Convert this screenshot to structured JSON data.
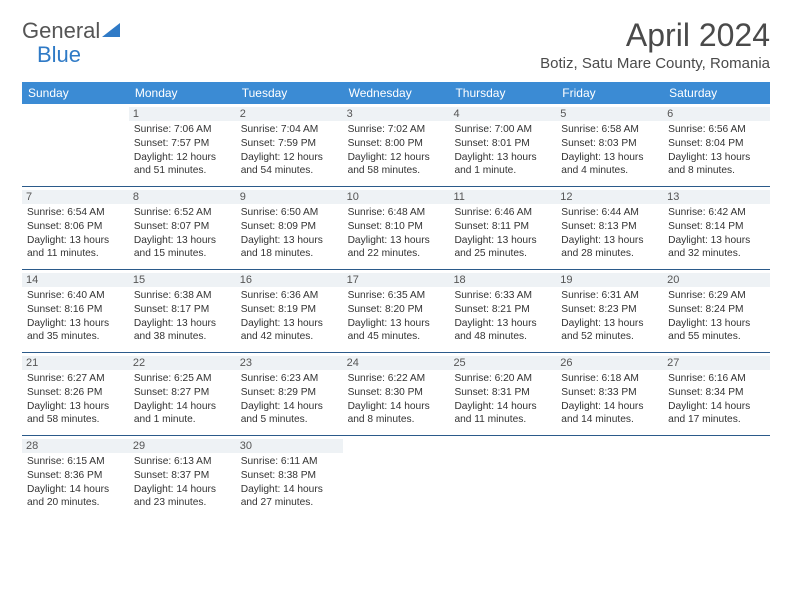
{
  "brand": {
    "text_a": "General",
    "text_b": "Blue",
    "color_a": "#555555",
    "color_b": "#2f7ac6"
  },
  "title": "April 2024",
  "location": "Botiz, Satu Mare County, Romania",
  "header_bg": "#3b8bd4",
  "border_color": "#2b5a8a",
  "daynum_bg": "#eef2f5",
  "days": [
    "Sunday",
    "Monday",
    "Tuesday",
    "Wednesday",
    "Thursday",
    "Friday",
    "Saturday"
  ],
  "weeks": [
    [
      {
        "n": "",
        "sr": "",
        "ss": "",
        "dl": ""
      },
      {
        "n": "1",
        "sr": "Sunrise: 7:06 AM",
        "ss": "Sunset: 7:57 PM",
        "dl": "Daylight: 12 hours and 51 minutes."
      },
      {
        "n": "2",
        "sr": "Sunrise: 7:04 AM",
        "ss": "Sunset: 7:59 PM",
        "dl": "Daylight: 12 hours and 54 minutes."
      },
      {
        "n": "3",
        "sr": "Sunrise: 7:02 AM",
        "ss": "Sunset: 8:00 PM",
        "dl": "Daylight: 12 hours and 58 minutes."
      },
      {
        "n": "4",
        "sr": "Sunrise: 7:00 AM",
        "ss": "Sunset: 8:01 PM",
        "dl": "Daylight: 13 hours and 1 minute."
      },
      {
        "n": "5",
        "sr": "Sunrise: 6:58 AM",
        "ss": "Sunset: 8:03 PM",
        "dl": "Daylight: 13 hours and 4 minutes."
      },
      {
        "n": "6",
        "sr": "Sunrise: 6:56 AM",
        "ss": "Sunset: 8:04 PM",
        "dl": "Daylight: 13 hours and 8 minutes."
      }
    ],
    [
      {
        "n": "7",
        "sr": "Sunrise: 6:54 AM",
        "ss": "Sunset: 8:06 PM",
        "dl": "Daylight: 13 hours and 11 minutes."
      },
      {
        "n": "8",
        "sr": "Sunrise: 6:52 AM",
        "ss": "Sunset: 8:07 PM",
        "dl": "Daylight: 13 hours and 15 minutes."
      },
      {
        "n": "9",
        "sr": "Sunrise: 6:50 AM",
        "ss": "Sunset: 8:09 PM",
        "dl": "Daylight: 13 hours and 18 minutes."
      },
      {
        "n": "10",
        "sr": "Sunrise: 6:48 AM",
        "ss": "Sunset: 8:10 PM",
        "dl": "Daylight: 13 hours and 22 minutes."
      },
      {
        "n": "11",
        "sr": "Sunrise: 6:46 AM",
        "ss": "Sunset: 8:11 PM",
        "dl": "Daylight: 13 hours and 25 minutes."
      },
      {
        "n": "12",
        "sr": "Sunrise: 6:44 AM",
        "ss": "Sunset: 8:13 PM",
        "dl": "Daylight: 13 hours and 28 minutes."
      },
      {
        "n": "13",
        "sr": "Sunrise: 6:42 AM",
        "ss": "Sunset: 8:14 PM",
        "dl": "Daylight: 13 hours and 32 minutes."
      }
    ],
    [
      {
        "n": "14",
        "sr": "Sunrise: 6:40 AM",
        "ss": "Sunset: 8:16 PM",
        "dl": "Daylight: 13 hours and 35 minutes."
      },
      {
        "n": "15",
        "sr": "Sunrise: 6:38 AM",
        "ss": "Sunset: 8:17 PM",
        "dl": "Daylight: 13 hours and 38 minutes."
      },
      {
        "n": "16",
        "sr": "Sunrise: 6:36 AM",
        "ss": "Sunset: 8:19 PM",
        "dl": "Daylight: 13 hours and 42 minutes."
      },
      {
        "n": "17",
        "sr": "Sunrise: 6:35 AM",
        "ss": "Sunset: 8:20 PM",
        "dl": "Daylight: 13 hours and 45 minutes."
      },
      {
        "n": "18",
        "sr": "Sunrise: 6:33 AM",
        "ss": "Sunset: 8:21 PM",
        "dl": "Daylight: 13 hours and 48 minutes."
      },
      {
        "n": "19",
        "sr": "Sunrise: 6:31 AM",
        "ss": "Sunset: 8:23 PM",
        "dl": "Daylight: 13 hours and 52 minutes."
      },
      {
        "n": "20",
        "sr": "Sunrise: 6:29 AM",
        "ss": "Sunset: 8:24 PM",
        "dl": "Daylight: 13 hours and 55 minutes."
      }
    ],
    [
      {
        "n": "21",
        "sr": "Sunrise: 6:27 AM",
        "ss": "Sunset: 8:26 PM",
        "dl": "Daylight: 13 hours and 58 minutes."
      },
      {
        "n": "22",
        "sr": "Sunrise: 6:25 AM",
        "ss": "Sunset: 8:27 PM",
        "dl": "Daylight: 14 hours and 1 minute."
      },
      {
        "n": "23",
        "sr": "Sunrise: 6:23 AM",
        "ss": "Sunset: 8:29 PM",
        "dl": "Daylight: 14 hours and 5 minutes."
      },
      {
        "n": "24",
        "sr": "Sunrise: 6:22 AM",
        "ss": "Sunset: 8:30 PM",
        "dl": "Daylight: 14 hours and 8 minutes."
      },
      {
        "n": "25",
        "sr": "Sunrise: 6:20 AM",
        "ss": "Sunset: 8:31 PM",
        "dl": "Daylight: 14 hours and 11 minutes."
      },
      {
        "n": "26",
        "sr": "Sunrise: 6:18 AM",
        "ss": "Sunset: 8:33 PM",
        "dl": "Daylight: 14 hours and 14 minutes."
      },
      {
        "n": "27",
        "sr": "Sunrise: 6:16 AM",
        "ss": "Sunset: 8:34 PM",
        "dl": "Daylight: 14 hours and 17 minutes."
      }
    ],
    [
      {
        "n": "28",
        "sr": "Sunrise: 6:15 AM",
        "ss": "Sunset: 8:36 PM",
        "dl": "Daylight: 14 hours and 20 minutes."
      },
      {
        "n": "29",
        "sr": "Sunrise: 6:13 AM",
        "ss": "Sunset: 8:37 PM",
        "dl": "Daylight: 14 hours and 23 minutes."
      },
      {
        "n": "30",
        "sr": "Sunrise: 6:11 AM",
        "ss": "Sunset: 8:38 PM",
        "dl": "Daylight: 14 hours and 27 minutes."
      },
      {
        "n": "",
        "sr": "",
        "ss": "",
        "dl": ""
      },
      {
        "n": "",
        "sr": "",
        "ss": "",
        "dl": ""
      },
      {
        "n": "",
        "sr": "",
        "ss": "",
        "dl": ""
      },
      {
        "n": "",
        "sr": "",
        "ss": "",
        "dl": ""
      }
    ]
  ]
}
